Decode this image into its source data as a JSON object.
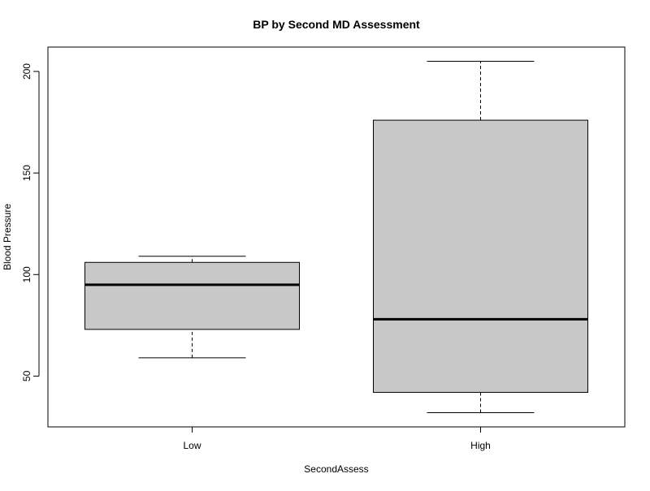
{
  "chart_data": {
    "type": "boxplot",
    "title": "BP by Second MD Assessment",
    "xlabel": "SecondAssess",
    "ylabel": "Blood Pressure",
    "ylim": [
      25,
      212
    ],
    "yticks": [
      50,
      100,
      150,
      200
    ],
    "categories": [
      "Low",
      "High"
    ],
    "boxes": [
      {
        "category": "Low",
        "whisker_low": 59,
        "q1": 73,
        "median": 95,
        "q3": 106,
        "whisker_high": 109
      },
      {
        "category": "High",
        "whisker_low": 32,
        "q1": 42,
        "median": 78,
        "q3": 176,
        "whisker_high": 205
      }
    ],
    "box_fill": "#c8c8c8",
    "line_color": "#000000",
    "grid": false,
    "legend": "none"
  }
}
